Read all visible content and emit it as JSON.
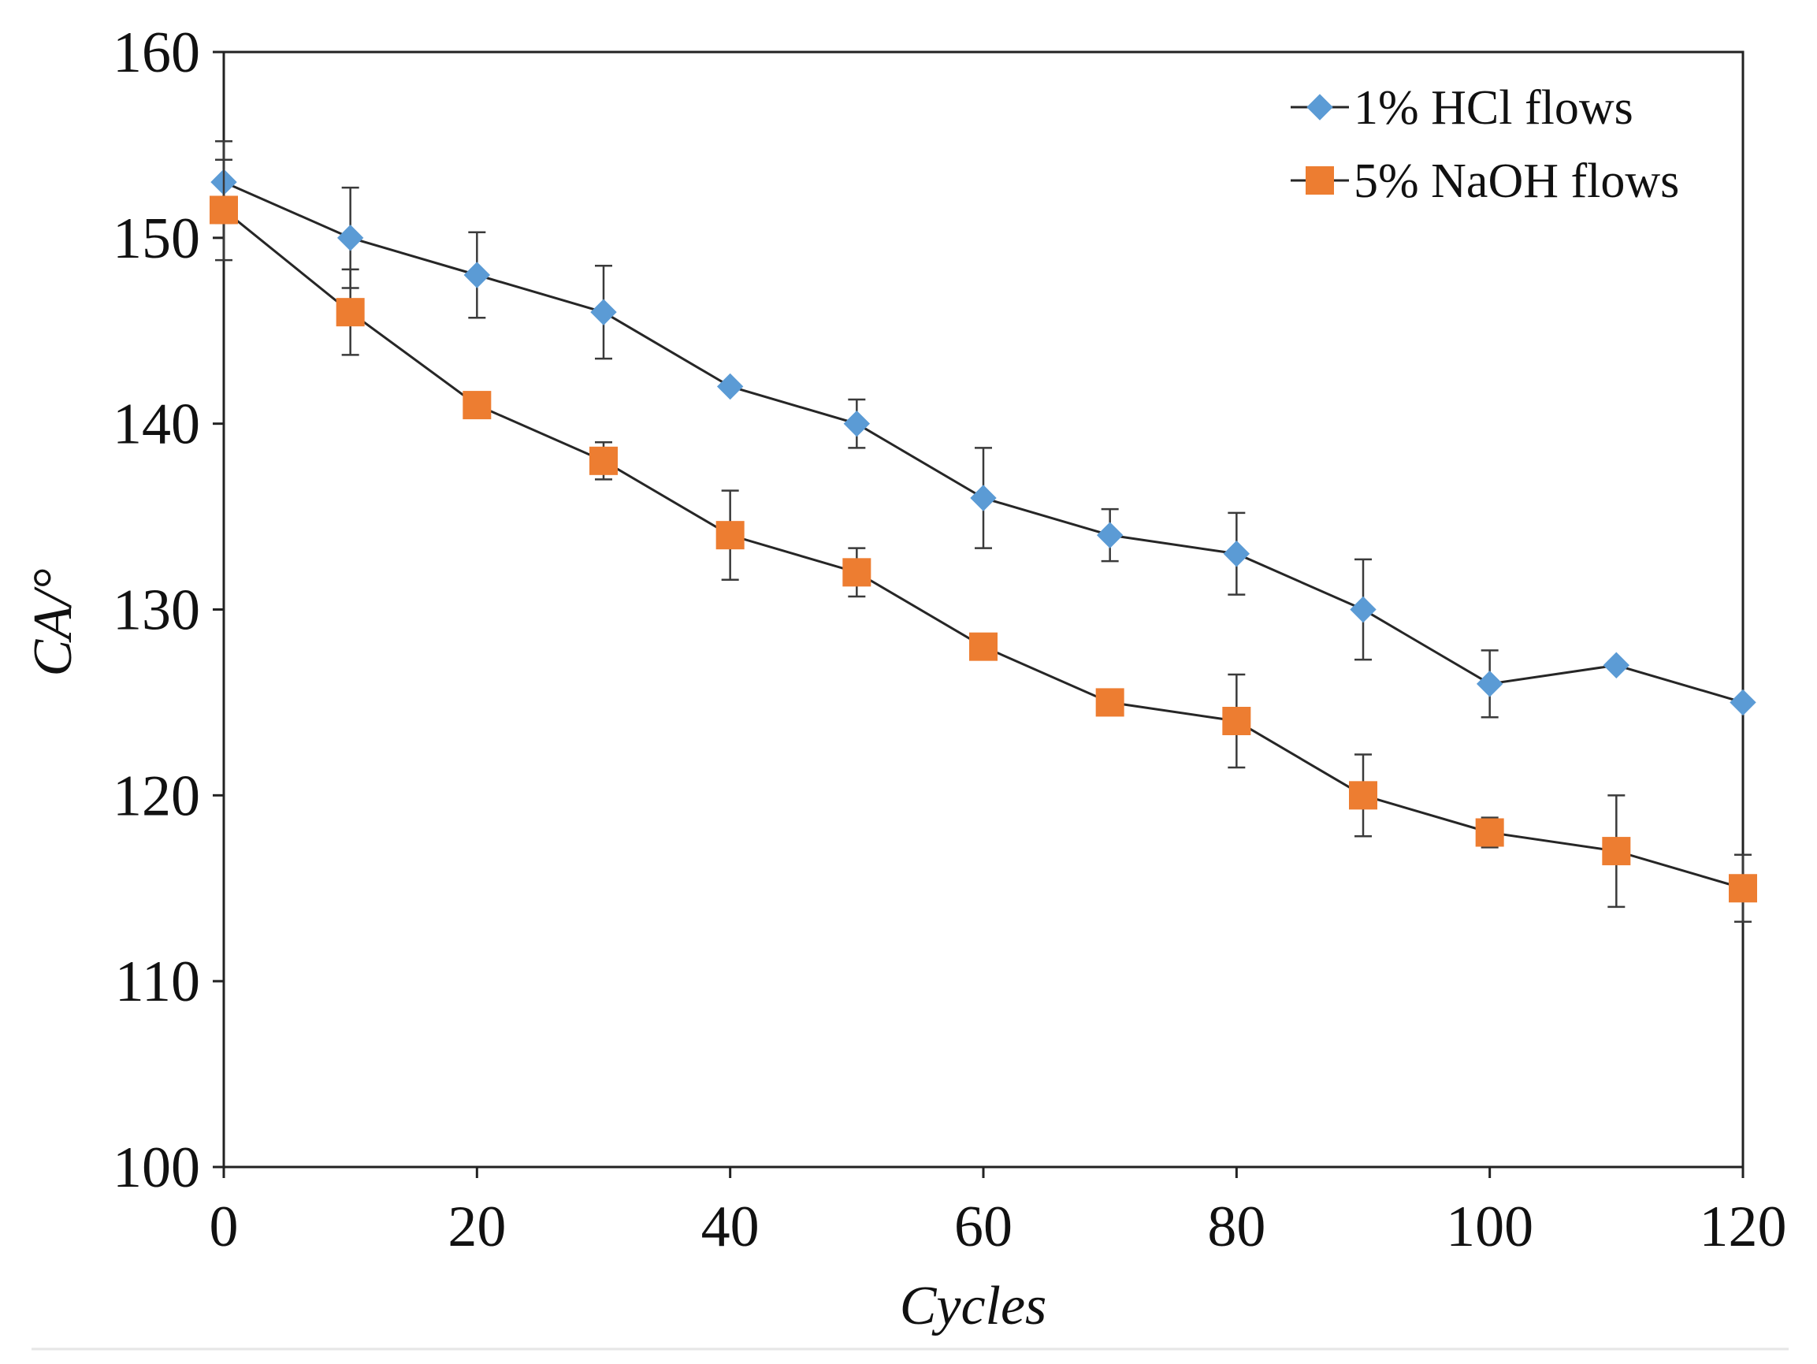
{
  "chart_data": {
    "type": "line",
    "title": "",
    "xlabel": "Cycles",
    "ylabel": "CA/°",
    "xlim": [
      0,
      120
    ],
    "ylim": [
      100,
      160
    ],
    "x_ticks": [
      0,
      20,
      40,
      60,
      80,
      100,
      120
    ],
    "y_ticks": [
      100,
      110,
      120,
      130,
      140,
      150,
      160
    ],
    "grid": false,
    "legend_position": "top-right",
    "x": [
      0,
      10,
      20,
      30,
      40,
      50,
      60,
      70,
      80,
      90,
      100,
      110,
      120
    ],
    "series": [
      {
        "name": "1% HCl flows",
        "marker": "diamond",
        "color": "#5b9bd5",
        "values": [
          153,
          150,
          148,
          146,
          142,
          140,
          136,
          134,
          133,
          130,
          126,
          127,
          125
        ],
        "errors": [
          2.2,
          2.7,
          2.3,
          2.5,
          0,
          1.3,
          2.7,
          1.4,
          2.2,
          2.7,
          1.8,
          0,
          0
        ]
      },
      {
        "name": "5% NaOH flows",
        "marker": "square",
        "color": "#ed7d31",
        "values": [
          151.5,
          146,
          141,
          138,
          134,
          132,
          128,
          125,
          124,
          120,
          118,
          117,
          115
        ],
        "errors": [
          2.7,
          2.3,
          0,
          1.0,
          2.4,
          1.3,
          0,
          0,
          2.5,
          2.2,
          0.8,
          3.0,
          1.8
        ]
      }
    ]
  }
}
